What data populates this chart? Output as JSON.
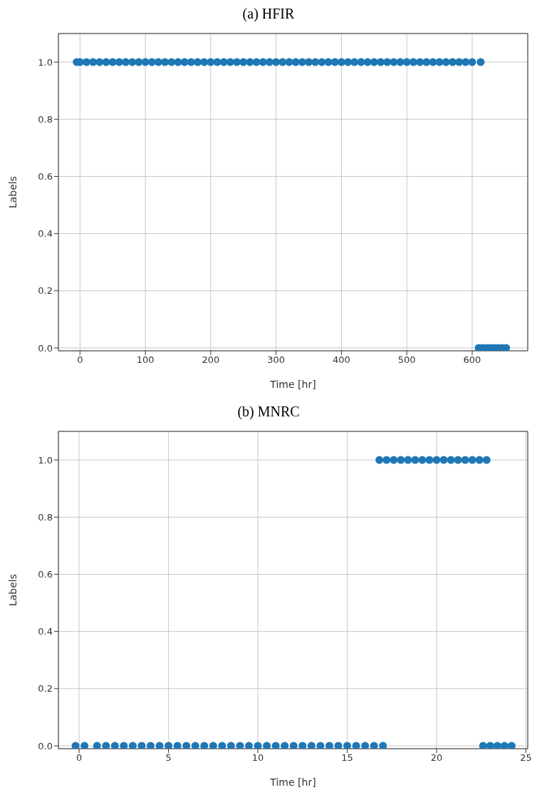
{
  "chart_data": [
    {
      "type": "scatter",
      "title": "(a) HFIR",
      "xlabel": "Time [hr]",
      "ylabel": "Labels",
      "xlim": [
        -33,
        685
      ],
      "ylim": [
        -0.01,
        1.1
      ],
      "xticks": [
        0,
        100,
        200,
        300,
        400,
        500,
        600
      ],
      "yticks": [
        {
          "value": 0,
          "label": "0.0"
        },
        {
          "value": 0.2,
          "label": "0.2"
        },
        {
          "value": 0.4,
          "label": "0.4"
        },
        {
          "value": 0.6,
          "label": "0.6"
        },
        {
          "value": 0.8,
          "label": "0.8"
        },
        {
          "value": 1,
          "label": "1.0"
        }
      ],
      "grid": true,
      "marker": "circle",
      "series": [
        {
          "color": "#1f77b4",
          "x": [
            -5,
            0,
            10,
            20,
            30,
            40,
            50,
            60,
            70,
            80,
            90,
            100,
            110,
            120,
            130,
            140,
            150,
            160,
            170,
            180,
            190,
            200,
            210,
            220,
            230,
            240,
            250,
            260,
            270,
            280,
            290,
            300,
            310,
            320,
            330,
            340,
            350,
            360,
            370,
            380,
            390,
            400,
            410,
            420,
            430,
            440,
            450,
            460,
            470,
            480,
            490,
            500,
            510,
            520,
            530,
            540,
            550,
            560,
            570,
            580,
            590,
            600,
            613
          ],
          "values": [
            1,
            1,
            1,
            1,
            1,
            1,
            1,
            1,
            1,
            1,
            1,
            1,
            1,
            1,
            1,
            1,
            1,
            1,
            1,
            1,
            1,
            1,
            1,
            1,
            1,
            1,
            1,
            1,
            1,
            1,
            1,
            1,
            1,
            1,
            1,
            1,
            1,
            1,
            1,
            1,
            1,
            1,
            1,
            1,
            1,
            1,
            1,
            1,
            1,
            1,
            1,
            1,
            1,
            1,
            1,
            1,
            1,
            1,
            1,
            1,
            1,
            1,
            1
          ]
        },
        {
          "color": "#1f77b4",
          "x": [
            610,
            616,
            622,
            628,
            634,
            640,
            646,
            652
          ],
          "values": [
            0,
            0,
            0,
            0,
            0,
            0,
            0,
            0
          ]
        }
      ]
    },
    {
      "type": "scatter",
      "title": "(b) MNRC",
      "xlabel": "Time [hr]",
      "ylabel": "Labels",
      "xlim": [
        -1.16,
        25.1
      ],
      "ylim": [
        -0.01,
        1.1
      ],
      "xticks": [
        0,
        5,
        10,
        15,
        20,
        25
      ],
      "yticks": [
        {
          "value": 0,
          "label": "0.0"
        },
        {
          "value": 0.2,
          "label": "0.2"
        },
        {
          "value": 0.4,
          "label": "0.4"
        },
        {
          "value": 0.6,
          "label": "0.6"
        },
        {
          "value": 0.8,
          "label": "0.8"
        },
        {
          "value": 1,
          "label": "1.0"
        }
      ],
      "grid": true,
      "marker": "circle",
      "series": [
        {
          "color": "#1f77b4",
          "x": [
            -0.2,
            0.3,
            1,
            1.5,
            2,
            2.5,
            3,
            3.5,
            4,
            4.5,
            5,
            5.5,
            6,
            6.5,
            7,
            7.5,
            8,
            8.5,
            9,
            9.5,
            10,
            10.5,
            11,
            11.5,
            12,
            12.5,
            13,
            13.5,
            14,
            14.5,
            15,
            15.5,
            16,
            16.5,
            17
          ],
          "values": [
            0,
            0,
            0,
            0,
            0,
            0,
            0,
            0,
            0,
            0,
            0,
            0,
            0,
            0,
            0,
            0,
            0,
            0,
            0,
            0,
            0,
            0,
            0,
            0,
            0,
            0,
            0,
            0,
            0,
            0,
            0,
            0,
            0,
            0,
            0
          ]
        },
        {
          "color": "#1f77b4",
          "x": [
            16.8,
            17.2,
            17.6,
            18,
            18.4,
            18.8,
            19.2,
            19.6,
            20,
            20.4,
            20.8,
            21.2,
            21.6,
            22,
            22.4,
            22.8
          ],
          "values": [
            1,
            1,
            1,
            1,
            1,
            1,
            1,
            1,
            1,
            1,
            1,
            1,
            1,
            1,
            1,
            1
          ]
        },
        {
          "color": "#1f77b4",
          "x": [
            22.6,
            23,
            23.4,
            23.8,
            24.2
          ],
          "values": [
            0,
            0,
            0,
            0,
            0
          ]
        }
      ]
    }
  ]
}
